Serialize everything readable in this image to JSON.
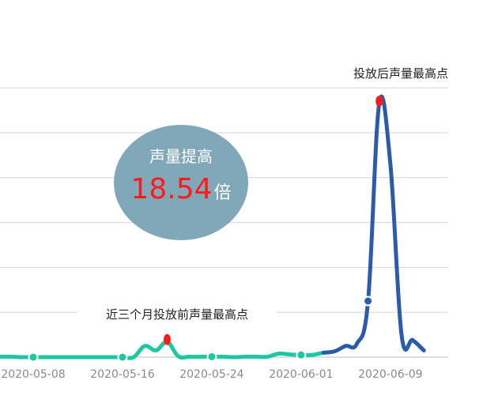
{
  "chart_data": {
    "type": "line",
    "title": "",
    "xlabel": "",
    "ylabel": "",
    "x_tick_labels": [
      "2020-05-08",
      "2020-05-16",
      "2020-05-24",
      "2020-06-01",
      "2020-06-09"
    ],
    "ylim": [
      0,
      60
    ],
    "grid": true,
    "series": [
      {
        "color": "#1cc8a0",
        "points": [
          [
            0,
            0.1
          ],
          [
            1,
            0.1
          ],
          [
            2,
            0
          ],
          [
            3,
            0
          ],
          [
            4,
            0
          ],
          [
            5,
            0
          ],
          [
            6,
            0
          ],
          [
            7,
            0
          ],
          [
            8,
            0
          ],
          [
            9,
            0
          ],
          [
            10,
            0
          ],
          [
            11,
            0
          ],
          [
            12,
            0
          ],
          [
            13,
            2.5
          ],
          [
            14,
            1.5
          ],
          [
            15,
            3.4
          ],
          [
            16,
            0.2
          ],
          [
            17,
            0.1
          ],
          [
            18,
            0.1
          ],
          [
            19,
            0.1
          ],
          [
            20,
            0.1
          ],
          [
            21,
            0
          ],
          [
            22,
            0.1
          ],
          [
            23,
            0.1
          ],
          [
            24,
            0.1
          ],
          [
            25,
            0.8
          ],
          [
            26,
            0.6
          ],
          [
            27,
            0.5
          ],
          [
            28,
            0.5
          ],
          [
            29,
            1.0
          ]
        ]
      },
      {
        "color": "#2a5caa",
        "points": [
          [
            29,
            1.0
          ],
          [
            30,
            1.3
          ],
          [
            31,
            2.5
          ],
          [
            32,
            3.0
          ],
          [
            33,
            12.5
          ],
          [
            34,
            56.5
          ],
          [
            35,
            43.0
          ],
          [
            36,
            5.0
          ],
          [
            37,
            3.8
          ],
          [
            38,
            1.5
          ]
        ]
      }
    ],
    "dots": [
      {
        "x": 3,
        "y": 0,
        "color": "#1cc8a0"
      },
      {
        "x": 11,
        "y": 0,
        "color": "#1cc8a0"
      },
      {
        "x": 19,
        "y": 0.1,
        "color": "#1cc8a0"
      },
      {
        "x": 27,
        "y": 0.5,
        "color": "#1cc8a0"
      },
      {
        "x": 33,
        "y": 12.5,
        "color": "#2a5caa"
      }
    ],
    "peaks": [
      {
        "x": 15,
        "y": 3.4,
        "color": "#ff1a1a",
        "label": "近三个月投放前声量最高点"
      },
      {
        "x": 34,
        "y": 56.5,
        "color": "#ff1a1a",
        "label": "投放后声量最高点"
      }
    ],
    "badge": {
      "title": "声量提高",
      "value": "18.54",
      "unit": "倍",
      "fill": "#81a8b8",
      "value_color": "#ff1a1a"
    }
  }
}
